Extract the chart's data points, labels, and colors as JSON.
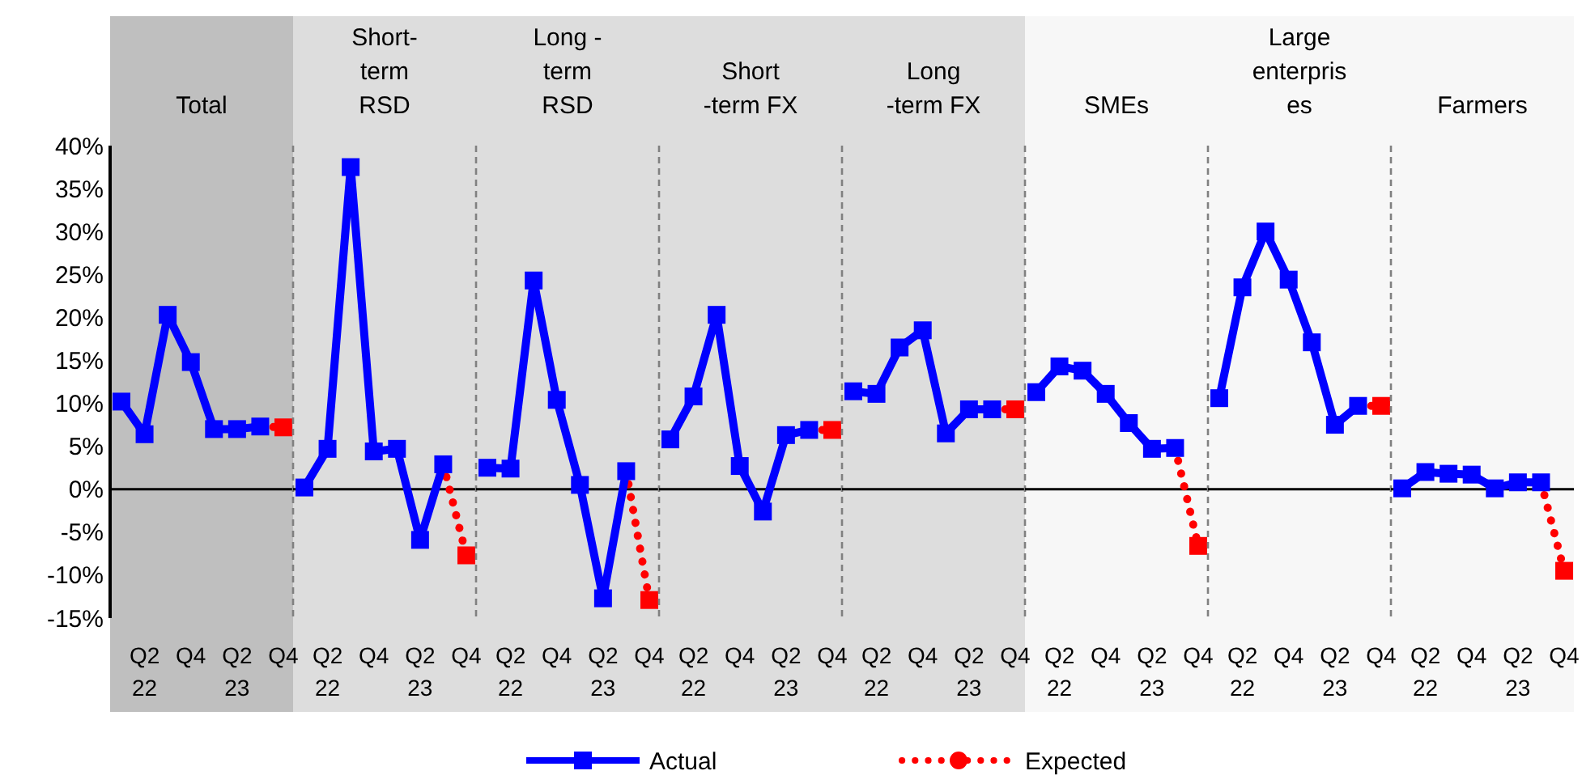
{
  "chart_data": [
    {
      "type": "line",
      "title": "Total",
      "categories": [
        null,
        "Q2\n22",
        null,
        "Q4",
        null,
        "Q2\n23",
        null,
        "Q4"
      ],
      "ylim": [
        -15,
        40
      ],
      "yticks": [
        {
          "value": -15,
          "label": "-15%"
        },
        {
          "value": -10,
          "label": "-10%"
        },
        {
          "value": -5,
          "label": "-5%"
        },
        {
          "value": 0,
          "label": "0%"
        },
        {
          "value": 5,
          "label": "5%"
        },
        {
          "value": 10,
          "label": "10%"
        },
        {
          "value": 15,
          "label": "15%"
        },
        {
          "value": 20,
          "label": "20%"
        },
        {
          "value": 25,
          "label": "25%"
        },
        {
          "value": 30,
          "label": "30%"
        },
        {
          "value": 35,
          "label": "35%"
        },
        {
          "value": 40,
          "label": "40%"
        }
      ],
      "legend": "bottom",
      "marker": "square",
      "ref_lines": [
        {
          "axis": "y",
          "value": 0,
          "color": "#000000"
        }
      ],
      "series": [
        {
          "name": "Actual",
          "color": "#0000ff",
          "line_style": "solid",
          "values": [
            10.2,
            6.4,
            20.3,
            14.8,
            7.0,
            7.0,
            7.3,
            null
          ]
        },
        {
          "name": "Expected",
          "color": "#ff0000",
          "line_style": "dotted",
          "values": [
            null,
            null,
            null,
            null,
            null,
            null,
            7.3,
            7.2
          ]
        }
      ]
    },
    {
      "type": "line",
      "title": "Short-\nterm\nRSD",
      "categories": [
        null,
        "Q2\n22",
        null,
        "Q4",
        null,
        "Q2\n23",
        null,
        "Q4"
      ],
      "ylim": [
        -15,
        40
      ],
      "tick_labels": "x",
      "marker": "square",
      "ref_lines": [
        {
          "axis": "y",
          "value": 0,
          "color": "#000000"
        }
      ],
      "series": [
        {
          "color": "#0000ff",
          "line_style": "solid",
          "values": [
            0.2,
            4.7,
            37.5,
            4.4,
            4.7,
            -5.9,
            2.9,
            null
          ]
        },
        {
          "color": "#ff0000",
          "line_style": "dotted",
          "values": [
            null,
            null,
            null,
            null,
            null,
            null,
            2.9,
            -7.7
          ]
        }
      ]
    },
    {
      "type": "line",
      "title": "Long -\nterm\nRSD",
      "categories": [
        null,
        "Q2\n22",
        null,
        "Q4",
        null,
        "Q2\n23",
        null,
        "Q4"
      ],
      "ylim": [
        -15,
        40
      ],
      "tick_labels": "x",
      "marker": "square",
      "ref_lines": [
        {
          "axis": "y",
          "value": 0,
          "color": "#000000"
        }
      ],
      "series": [
        {
          "color": "#0000ff",
          "line_style": "solid",
          "values": [
            2.5,
            2.4,
            24.3,
            10.4,
            0.5,
            -12.7,
            2.1,
            null
          ]
        },
        {
          "color": "#ff0000",
          "line_style": "dotted",
          "values": [
            null,
            null,
            null,
            null,
            null,
            null,
            2.1,
            -12.9
          ]
        }
      ]
    },
    {
      "type": "line",
      "title": "Short\n-term FX",
      "categories": [
        null,
        "Q2\n22",
        null,
        "Q4",
        null,
        "Q2\n23",
        null,
        "Q4"
      ],
      "ylim": [
        -15,
        40
      ],
      "tick_labels": "x",
      "marker": "square",
      "ref_lines": [
        {
          "axis": "y",
          "value": 0,
          "color": "#000000"
        }
      ],
      "series": [
        {
          "color": "#0000ff",
          "line_style": "solid",
          "values": [
            5.8,
            10.8,
            20.3,
            2.7,
            -2.6,
            6.3,
            6.9,
            null
          ]
        },
        {
          "color": "#ff0000",
          "line_style": "dotted",
          "values": [
            null,
            null,
            null,
            null,
            null,
            null,
            6.9,
            6.9
          ]
        }
      ]
    },
    {
      "type": "line",
      "title": "Long\n-term FX",
      "categories": [
        null,
        "Q2\n22",
        null,
        "Q4",
        null,
        "Q2\n23",
        null,
        "Q4"
      ],
      "ylim": [
        -15,
        40
      ],
      "tick_labels": "x",
      "marker": "square",
      "ref_lines": [
        {
          "axis": "y",
          "value": 0,
          "color": "#000000"
        }
      ],
      "series": [
        {
          "color": "#0000ff",
          "line_style": "solid",
          "values": [
            11.4,
            11.1,
            16.5,
            18.5,
            6.5,
            9.3,
            9.3,
            null
          ]
        },
        {
          "color": "#ff0000",
          "line_style": "dotted",
          "values": [
            null,
            null,
            null,
            null,
            null,
            null,
            9.3,
            9.3
          ]
        }
      ]
    },
    {
      "type": "line",
      "title": "SMEs",
      "categories": [
        null,
        "Q2\n22",
        null,
        "Q4",
        null,
        "Q2\n23",
        null,
        "Q4"
      ],
      "ylim": [
        -15,
        40
      ],
      "tick_labels": "x",
      "marker": "square",
      "ref_lines": [
        {
          "axis": "y",
          "value": 0,
          "color": "#000000"
        }
      ],
      "series": [
        {
          "color": "#0000ff",
          "line_style": "solid",
          "values": [
            11.3,
            14.3,
            13.8,
            11.1,
            7.7,
            4.7,
            4.8,
            null
          ]
        },
        {
          "color": "#ff0000",
          "line_style": "dotted",
          "values": [
            null,
            null,
            null,
            null,
            null,
            null,
            4.8,
            -6.6
          ]
        }
      ]
    },
    {
      "type": "line",
      "title": "Large\nenterpris\nes",
      "categories": [
        null,
        "Q2\n22",
        null,
        "Q4",
        null,
        "Q2\n23",
        null,
        "Q4"
      ],
      "ylim": [
        -15,
        40
      ],
      "tick_labels": "x",
      "marker": "square",
      "ref_lines": [
        {
          "axis": "y",
          "value": 0,
          "color": "#000000"
        }
      ],
      "series": [
        {
          "color": "#0000ff",
          "line_style": "solid",
          "values": [
            10.6,
            23.5,
            30.0,
            24.4,
            17.1,
            7.5,
            9.7,
            null
          ]
        },
        {
          "color": "#ff0000",
          "line_style": "dotted",
          "values": [
            null,
            null,
            null,
            null,
            null,
            null,
            9.7,
            9.7
          ]
        }
      ]
    },
    {
      "type": "line",
      "title": "Farmers",
      "categories": [
        null,
        "Q2\n22",
        null,
        "Q4",
        null,
        "Q2\n23",
        null,
        "Q4"
      ],
      "ylim": [
        -15,
        40
      ],
      "tick_labels": "x",
      "marker": "square",
      "ref_lines": [
        {
          "axis": "y",
          "value": 0,
          "color": "#000000"
        }
      ],
      "series": [
        {
          "color": "#0000ff",
          "line_style": "solid",
          "values": [
            0.1,
            2.0,
            1.8,
            1.7,
            0.1,
            0.8,
            0.8,
            null
          ]
        },
        {
          "color": "#ff0000",
          "line_style": "dotted",
          "values": [
            null,
            null,
            null,
            null,
            null,
            null,
            0.8,
            -9.5
          ]
        }
      ]
    }
  ]
}
